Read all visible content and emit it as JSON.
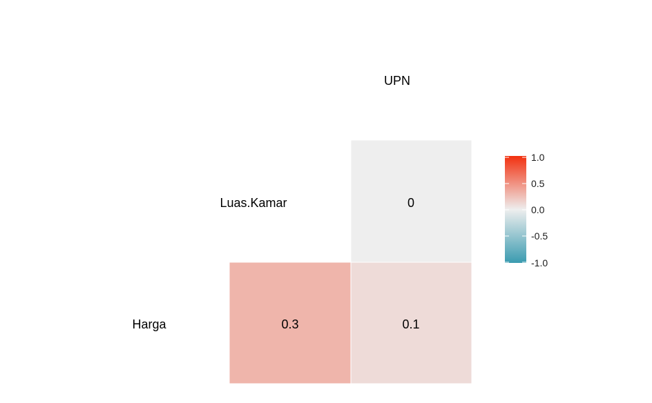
{
  "chart_data": {
    "type": "heatmap",
    "variables": [
      "Harga",
      "Luas.Kamar",
      "UPN"
    ],
    "column_labels": [
      "UPN"
    ],
    "row_labels": [
      "Luas.Kamar",
      "Harga"
    ],
    "cells": [
      {
        "row": "Luas.Kamar",
        "col": "UPN",
        "value": 0,
        "label": "0"
      },
      {
        "row": "Harga",
        "col": "Luas.Kamar",
        "value": 0.3,
        "label": "0.3"
      },
      {
        "row": "Harga",
        "col": "UPN",
        "value": 0.1,
        "label": "0.1"
      }
    ],
    "legend": {
      "ticks": [
        "1.0",
        "0.5",
        "0.0",
        "-0.5",
        "-1.0"
      ],
      "range": [
        -1,
        1
      ],
      "colors": {
        "low": "#3A9BB0",
        "mid": "#EEEEEE",
        "high": "#F2300F"
      },
      "placement": "right"
    },
    "grid": false
  }
}
